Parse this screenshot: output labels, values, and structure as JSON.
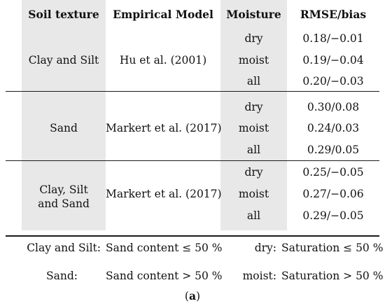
{
  "table": {
    "headers": [
      "Soil texture",
      "Empirical Model",
      "Moisture",
      "RMSE/bias"
    ],
    "groups": [
      {
        "texture": [
          "Clay and Silt"
        ],
        "model": "Hu et al. (2001)",
        "rows": [
          {
            "moisture": "dry",
            "rmse_bias": "0.18/−0.01"
          },
          {
            "moisture": "moist",
            "rmse_bias": "0.19/−0.04"
          },
          {
            "moisture": "all",
            "rmse_bias": "0.20/−0.03"
          }
        ]
      },
      {
        "texture": [
          "Sand"
        ],
        "model": "Markert et al. (2017)",
        "rows": [
          {
            "moisture": "dry",
            "rmse_bias": "0.30/0.08"
          },
          {
            "moisture": "moist",
            "rmse_bias": "0.24/0.03"
          },
          {
            "moisture": "all",
            "rmse_bias": "0.29/0.05"
          }
        ]
      },
      {
        "texture": [
          "Clay, Silt",
          "and Sand"
        ],
        "model": "Markert et al. (2017)",
        "rows": [
          {
            "moisture": "dry",
            "rmse_bias": "0.25/−0.05"
          },
          {
            "moisture": "moist",
            "rmse_bias": "0.27/−0.06"
          },
          {
            "moisture": "all",
            "rmse_bias": "0.29/−0.05"
          }
        ]
      }
    ]
  },
  "notes": {
    "row1": {
      "texture_label": "Clay and Silt:",
      "texture_def": "Sand content ≤ 50 %",
      "moisture_label": "dry:",
      "moisture_def": "Saturation ≤ 50 %"
    },
    "row2": {
      "texture_label": "Sand:",
      "texture_def": "Sand content > 50 %",
      "moisture_label": "moist:",
      "moisture_def": "Saturation > 50 %"
    }
  },
  "caption": {
    "open": "(",
    "letter": "a",
    "close": ")"
  },
  "colors": {
    "shade": "#e8e8e8",
    "rule": "#1a1a1a"
  }
}
